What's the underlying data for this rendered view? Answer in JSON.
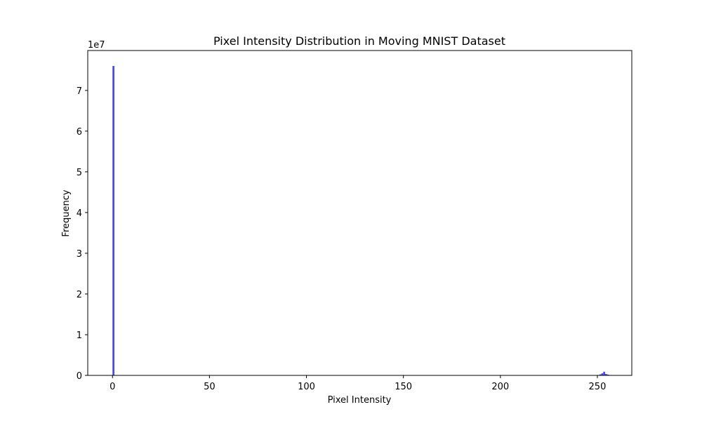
{
  "chart_data": {
    "type": "bar",
    "title": "Pixel Intensity Distribution in Moving MNIST Dataset",
    "xlabel": "Pixel Intensity",
    "ylabel": "Frequency",
    "y_offset_label": "1e7",
    "xlim": [
      -12.75,
      267.75
    ],
    "ylim": [
      0,
      79800000
    ],
    "x_ticks": [
      0,
      50,
      100,
      150,
      200,
      250
    ],
    "y_ticks": [
      0,
      10000000,
      20000000,
      30000000,
      40000000,
      50000000,
      60000000,
      70000000
    ],
    "x_tick_labels": [
      "0",
      "50",
      "100",
      "150",
      "200",
      "250"
    ],
    "y_tick_labels": [
      "0",
      "1",
      "2",
      "3",
      "4",
      "5",
      "6",
      "7"
    ],
    "bin_width": 1,
    "grid": false,
    "bar_color": "#0000dd",
    "bar_opacity": 0.7,
    "bins": [
      {
        "x": 0,
        "value": 76000000
      },
      {
        "x": 251,
        "value": 250000
      },
      {
        "x": 252,
        "value": 500000
      },
      {
        "x": 253,
        "value": 900000
      },
      {
        "x": 254,
        "value": 350000
      },
      {
        "x": 255,
        "value": 200000
      }
    ]
  }
}
